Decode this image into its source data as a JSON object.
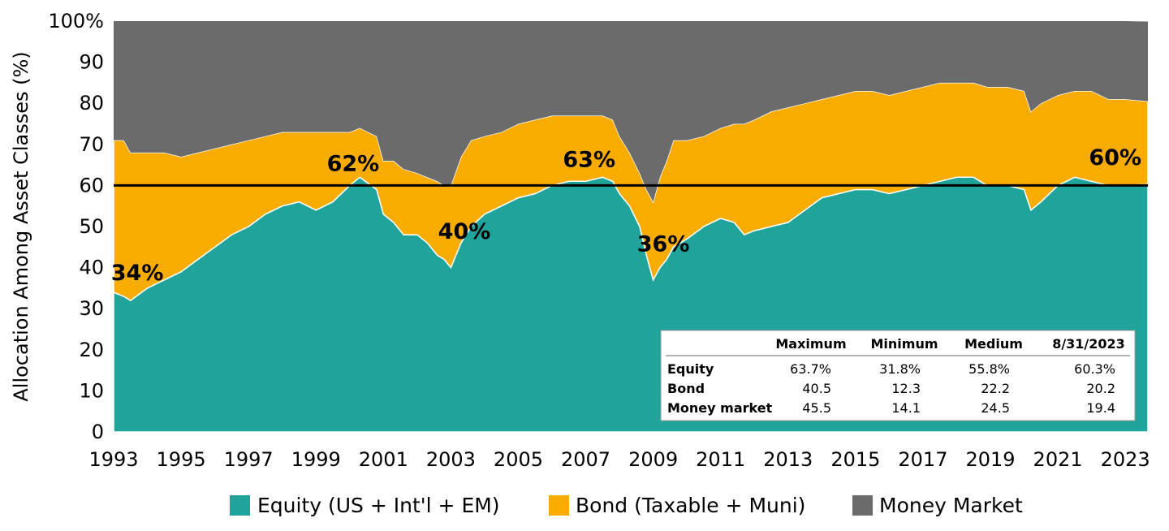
{
  "colors": {
    "equity": "#1fa39b",
    "bond": "#f9ac00",
    "money_market": "#6b6b6b"
  },
  "chart_data": {
    "type": "area",
    "stacked": true,
    "ylabel": "Allocation Among Asset Classes (%)",
    "ylim": [
      0,
      100
    ],
    "xlim": [
      1993,
      2023.67
    ],
    "y_ticks": [
      "0",
      "10",
      "20",
      "30",
      "40",
      "50",
      "60",
      "70",
      "80",
      "90",
      "100%"
    ],
    "x_ticks": [
      "1993",
      "1995",
      "1997",
      "1999",
      "2001",
      "2003",
      "2005",
      "2007",
      "2009",
      "2011",
      "2013",
      "2015",
      "2017",
      "2019",
      "2021",
      "2023"
    ],
    "reference_line": 60,
    "series": [
      {
        "name": "Equity (US + Int'l + EM)",
        "color_key": "equity",
        "points": [
          [
            1993.0,
            34
          ],
          [
            1993.3,
            33
          ],
          [
            1993.5,
            32
          ],
          [
            1994.0,
            35
          ],
          [
            1994.5,
            37
          ],
          [
            1995.0,
            39
          ],
          [
            1995.5,
            42
          ],
          [
            1996.0,
            45
          ],
          [
            1996.5,
            48
          ],
          [
            1997.0,
            50
          ],
          [
            1997.5,
            53
          ],
          [
            1998.0,
            55
          ],
          [
            1998.5,
            56
          ],
          [
            1999.0,
            54
          ],
          [
            1999.5,
            56
          ],
          [
            2000.0,
            60
          ],
          [
            2000.3,
            62
          ],
          [
            2000.8,
            59
          ],
          [
            2001.0,
            53
          ],
          [
            2001.3,
            51
          ],
          [
            2001.6,
            48
          ],
          [
            2002.0,
            48
          ],
          [
            2002.3,
            46
          ],
          [
            2002.6,
            43
          ],
          [
            2002.8,
            42
          ],
          [
            2003.0,
            40
          ],
          [
            2003.3,
            46
          ],
          [
            2003.6,
            50
          ],
          [
            2004.0,
            53
          ],
          [
            2004.5,
            55
          ],
          [
            2005.0,
            57
          ],
          [
            2005.5,
            58
          ],
          [
            2006.0,
            60
          ],
          [
            2006.5,
            61
          ],
          [
            2007.0,
            61
          ],
          [
            2007.5,
            62
          ],
          [
            2007.8,
            61
          ],
          [
            2008.0,
            58
          ],
          [
            2008.3,
            55
          ],
          [
            2008.6,
            50
          ],
          [
            2008.8,
            43
          ],
          [
            2009.0,
            37
          ],
          [
            2009.2,
            40
          ],
          [
            2009.4,
            42
          ],
          [
            2009.6,
            45
          ],
          [
            2010.0,
            47
          ],
          [
            2010.5,
            50
          ],
          [
            2011.0,
            52
          ],
          [
            2011.4,
            51
          ],
          [
            2011.7,
            48
          ],
          [
            2012.0,
            49
          ],
          [
            2012.5,
            50
          ],
          [
            2013.0,
            51
          ],
          [
            2013.5,
            54
          ],
          [
            2014.0,
            57
          ],
          [
            2014.5,
            58
          ],
          [
            2015.0,
            59
          ],
          [
            2015.5,
            59
          ],
          [
            2016.0,
            58
          ],
          [
            2016.5,
            59
          ],
          [
            2017.0,
            60
          ],
          [
            2017.5,
            61
          ],
          [
            2018.0,
            62
          ],
          [
            2018.5,
            62
          ],
          [
            2018.9,
            60
          ],
          [
            2019.0,
            60
          ],
          [
            2019.5,
            60
          ],
          [
            2020.0,
            59
          ],
          [
            2020.2,
            54
          ],
          [
            2020.5,
            56
          ],
          [
            2021.0,
            60
          ],
          [
            2021.5,
            62
          ],
          [
            2022.0,
            61
          ],
          [
            2022.5,
            60
          ],
          [
            2023.0,
            60
          ],
          [
            2023.67,
            60.3
          ]
        ]
      },
      {
        "name": "Bond (Taxable + Muni)",
        "color_key": "bond",
        "points": [
          [
            1993.0,
            37
          ],
          [
            1993.3,
            38
          ],
          [
            1993.5,
            36
          ],
          [
            1994.0,
            33
          ],
          [
            1994.5,
            31
          ],
          [
            1995.0,
            28
          ],
          [
            1995.5,
            26
          ],
          [
            1996.0,
            24
          ],
          [
            1996.5,
            22
          ],
          [
            1997.0,
            21
          ],
          [
            1997.5,
            19
          ],
          [
            1998.0,
            18
          ],
          [
            1998.5,
            17
          ],
          [
            1999.0,
            19
          ],
          [
            1999.5,
            17
          ],
          [
            2000.0,
            13
          ],
          [
            2000.3,
            12
          ],
          [
            2000.8,
            13
          ],
          [
            2001.0,
            13
          ],
          [
            2001.3,
            15
          ],
          [
            2001.6,
            16
          ],
          [
            2002.0,
            15
          ],
          [
            2002.3,
            16
          ],
          [
            2002.6,
            18
          ],
          [
            2002.8,
            18
          ],
          [
            2003.0,
            20
          ],
          [
            2003.3,
            21
          ],
          [
            2003.6,
            21
          ],
          [
            2004.0,
            19
          ],
          [
            2004.5,
            18
          ],
          [
            2005.0,
            18
          ],
          [
            2005.5,
            18
          ],
          [
            2006.0,
            17
          ],
          [
            2006.5,
            16
          ],
          [
            2007.0,
            16
          ],
          [
            2007.5,
            15
          ],
          [
            2007.8,
            15
          ],
          [
            2008.0,
            14
          ],
          [
            2008.3,
            13
          ],
          [
            2008.6,
            13
          ],
          [
            2008.8,
            16
          ],
          [
            2009.0,
            19
          ],
          [
            2009.2,
            22
          ],
          [
            2009.4,
            24
          ],
          [
            2009.6,
            26
          ],
          [
            2010.0,
            24
          ],
          [
            2010.5,
            22
          ],
          [
            2011.0,
            22
          ],
          [
            2011.4,
            24
          ],
          [
            2011.7,
            27
          ],
          [
            2012.0,
            27
          ],
          [
            2012.5,
            28
          ],
          [
            2013.0,
            28
          ],
          [
            2013.5,
            26
          ],
          [
            2014.0,
            24
          ],
          [
            2014.5,
            24
          ],
          [
            2015.0,
            24
          ],
          [
            2015.5,
            24
          ],
          [
            2016.0,
            24
          ],
          [
            2016.5,
            24
          ],
          [
            2017.0,
            24
          ],
          [
            2017.5,
            24
          ],
          [
            2018.0,
            23
          ],
          [
            2018.5,
            23
          ],
          [
            2018.9,
            24
          ],
          [
            2019.0,
            24
          ],
          [
            2019.5,
            24
          ],
          [
            2020.0,
            24
          ],
          [
            2020.2,
            24
          ],
          [
            2020.5,
            24
          ],
          [
            2021.0,
            22
          ],
          [
            2021.5,
            21
          ],
          [
            2022.0,
            22
          ],
          [
            2022.5,
            21
          ],
          [
            2023.0,
            21
          ],
          [
            2023.67,
            20.2
          ]
        ]
      },
      {
        "name": "Money Market",
        "color_key": "money_market",
        "points": [
          [
            1993.0,
            29
          ],
          [
            1993.3,
            29
          ],
          [
            1993.5,
            32
          ],
          [
            1994.0,
            32
          ],
          [
            1994.5,
            32
          ],
          [
            1995.0,
            33
          ],
          [
            1995.5,
            32
          ],
          [
            1996.0,
            31
          ],
          [
            1996.5,
            30
          ],
          [
            1997.0,
            29
          ],
          [
            1997.5,
            28
          ],
          [
            1998.0,
            27
          ],
          [
            1998.5,
            27
          ],
          [
            1999.0,
            27
          ],
          [
            1999.5,
            27
          ],
          [
            2000.0,
            27
          ],
          [
            2000.3,
            26
          ],
          [
            2000.8,
            28
          ],
          [
            2001.0,
            34
          ],
          [
            2001.3,
            34
          ],
          [
            2001.6,
            36
          ],
          [
            2002.0,
            37
          ],
          [
            2002.3,
            38
          ],
          [
            2002.6,
            39
          ],
          [
            2002.8,
            40
          ],
          [
            2003.0,
            40
          ],
          [
            2003.3,
            33
          ],
          [
            2003.6,
            29
          ],
          [
            2004.0,
            28
          ],
          [
            2004.5,
            27
          ],
          [
            2005.0,
            25
          ],
          [
            2005.5,
            24
          ],
          [
            2006.0,
            23
          ],
          [
            2006.5,
            23
          ],
          [
            2007.0,
            23
          ],
          [
            2007.5,
            23
          ],
          [
            2007.8,
            24
          ],
          [
            2008.0,
            28
          ],
          [
            2008.3,
            32
          ],
          [
            2008.6,
            37
          ],
          [
            2008.8,
            41
          ],
          [
            2009.0,
            44
          ],
          [
            2009.2,
            38
          ],
          [
            2009.4,
            34
          ],
          [
            2009.6,
            29
          ],
          [
            2010.0,
            29
          ],
          [
            2010.5,
            28
          ],
          [
            2011.0,
            26
          ],
          [
            2011.4,
            25
          ],
          [
            2011.7,
            25
          ],
          [
            2012.0,
            24
          ],
          [
            2012.5,
            22
          ],
          [
            2013.0,
            21
          ],
          [
            2013.5,
            20
          ],
          [
            2014.0,
            19
          ],
          [
            2014.5,
            18
          ],
          [
            2015.0,
            17
          ],
          [
            2015.5,
            17
          ],
          [
            2016.0,
            18
          ],
          [
            2016.5,
            17
          ],
          [
            2017.0,
            16
          ],
          [
            2017.5,
            15
          ],
          [
            2018.0,
            15
          ],
          [
            2018.5,
            15
          ],
          [
            2018.9,
            16
          ],
          [
            2019.0,
            16
          ],
          [
            2019.5,
            16
          ],
          [
            2020.0,
            17
          ],
          [
            2020.2,
            22
          ],
          [
            2020.5,
            20
          ],
          [
            2021.0,
            18
          ],
          [
            2021.5,
            17
          ],
          [
            2022.0,
            17
          ],
          [
            2022.5,
            19
          ],
          [
            2023.0,
            19
          ],
          [
            2023.67,
            19.4
          ]
        ]
      }
    ],
    "annotations": [
      {
        "text": "34%",
        "x": 1993.7,
        "y": 37
      },
      {
        "text": "62%",
        "x": 2000.1,
        "y": 63.5
      },
      {
        "text": "40%",
        "x": 2003.4,
        "y": 47
      },
      {
        "text": "63%",
        "x": 2007.1,
        "y": 64.5
      },
      {
        "text": "36%",
        "x": 2009.3,
        "y": 44
      },
      {
        "text": "60%",
        "x": 2022.7,
        "y": 65
      }
    ],
    "legend_position": "bottom",
    "stats_table": {
      "position": "bottom-right",
      "headers": [
        "",
        "Maximum",
        "Minimum",
        "Medium",
        "8/31/2023"
      ],
      "rows": [
        [
          "Equity",
          "63.7%",
          "31.8%",
          "55.8%",
          "60.3%"
        ],
        [
          "Bond",
          "40.5",
          "12.3",
          "22.2",
          "20.2"
        ],
        [
          "Money market",
          "45.5",
          "14.1",
          "24.5",
          "19.4"
        ]
      ]
    }
  }
}
